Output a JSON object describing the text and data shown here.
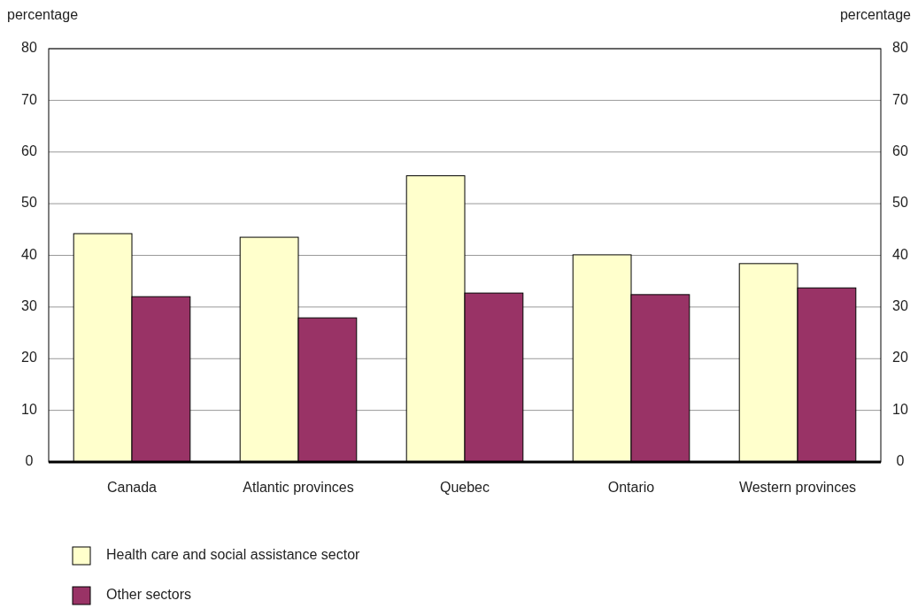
{
  "chart_data": {
    "type": "bar",
    "ylabel": "percentage",
    "y2label": "percentage",
    "categories": [
      "Canada",
      "Atlantic provinces",
      "Quebec",
      "Ontario",
      "Western provinces"
    ],
    "series": [
      {
        "name": "Health care and social assistance sector",
        "color": "#ffffcc",
        "values": [
          44.2,
          43.5,
          55.4,
          40.1,
          38.4
        ]
      },
      {
        "name": "Other sectors",
        "color": "#993366",
        "values": [
          32.0,
          27.9,
          32.7,
          32.4,
          33.7
        ]
      }
    ],
    "ylim": [
      0,
      80
    ],
    "yticks": [
      0,
      10,
      20,
      30,
      40,
      50,
      60,
      70,
      80
    ],
    "y2lim": [
      0,
      80
    ],
    "y2ticks": [
      0,
      10,
      20,
      30,
      40,
      50,
      60,
      70,
      80
    ],
    "grid": "y",
    "legend": "bottom left"
  }
}
